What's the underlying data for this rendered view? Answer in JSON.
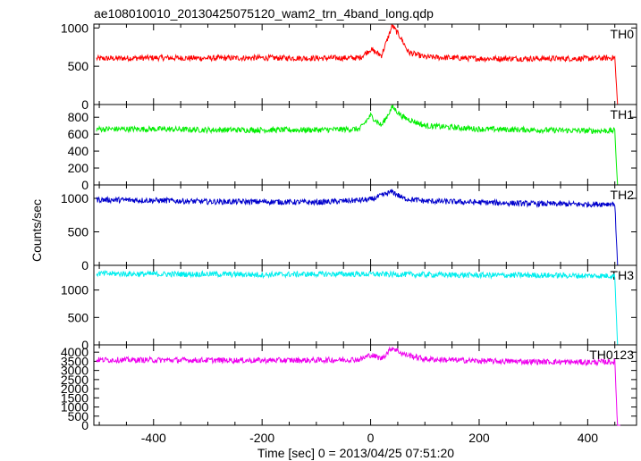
{
  "chart_data": {
    "type": "line",
    "title": "ae108010010_20130425075120_wam2_trn_4band_long.qdp",
    "xlabel": "Time [sec] 0 = 2013/04/25 07:51:20",
    "ylabel": "Counts/sec",
    "xlim": [
      -510,
      490
    ],
    "x_ticks": [
      -400,
      -200,
      0,
      200,
      400
    ],
    "grid": false,
    "panels": [
      {
        "name": "TH0",
        "color": "#ff0000",
        "ylim": [
          0,
          1050
        ],
        "y_ticks": [
          0,
          500,
          1000
        ],
        "series": [
          {
            "x": -505,
            "y": 600
          },
          {
            "x": -400,
            "y": 610
          },
          {
            "x": -300,
            "y": 605
          },
          {
            "x": -200,
            "y": 610
          },
          {
            "x": -100,
            "y": 605
          },
          {
            "x": -20,
            "y": 610
          },
          {
            "x": 0,
            "y": 720
          },
          {
            "x": 20,
            "y": 640
          },
          {
            "x": 40,
            "y": 1030
          },
          {
            "x": 55,
            "y": 880
          },
          {
            "x": 70,
            "y": 680
          },
          {
            "x": 100,
            "y": 620
          },
          {
            "x": 200,
            "y": 600
          },
          {
            "x": 300,
            "y": 600
          },
          {
            "x": 400,
            "y": 600
          },
          {
            "x": 450,
            "y": 610
          },
          {
            "x": 455,
            "y": 0
          },
          {
            "x": 460,
            "y": 0
          }
        ]
      },
      {
        "name": "TH1",
        "color": "#00ee00",
        "ylim": [
          0,
          950
        ],
        "y_ticks": [
          0,
          200,
          400,
          600,
          800
        ],
        "series": [
          {
            "x": -505,
            "y": 660
          },
          {
            "x": -400,
            "y": 660
          },
          {
            "x": -300,
            "y": 650
          },
          {
            "x": -200,
            "y": 650
          },
          {
            "x": -100,
            "y": 650
          },
          {
            "x": -20,
            "y": 660
          },
          {
            "x": 0,
            "y": 820
          },
          {
            "x": 20,
            "y": 700
          },
          {
            "x": 40,
            "y": 920
          },
          {
            "x": 60,
            "y": 800
          },
          {
            "x": 100,
            "y": 700
          },
          {
            "x": 200,
            "y": 660
          },
          {
            "x": 300,
            "y": 650
          },
          {
            "x": 400,
            "y": 640
          },
          {
            "x": 450,
            "y": 640
          },
          {
            "x": 455,
            "y": 0
          },
          {
            "x": 460,
            "y": 0
          }
        ]
      },
      {
        "name": "TH2",
        "color": "#0000cc",
        "ylim": [
          0,
          1200
        ],
        "y_ticks": [
          0,
          500,
          1000
        ],
        "series": [
          {
            "x": -505,
            "y": 980
          },
          {
            "x": -400,
            "y": 970
          },
          {
            "x": -300,
            "y": 950
          },
          {
            "x": -200,
            "y": 950
          },
          {
            "x": -100,
            "y": 940
          },
          {
            "x": 0,
            "y": 980
          },
          {
            "x": 40,
            "y": 1100
          },
          {
            "x": 60,
            "y": 1000
          },
          {
            "x": 100,
            "y": 960
          },
          {
            "x": 200,
            "y": 940
          },
          {
            "x": 300,
            "y": 920
          },
          {
            "x": 400,
            "y": 910
          },
          {
            "x": 450,
            "y": 920
          },
          {
            "x": 455,
            "y": 0
          },
          {
            "x": 460,
            "y": 0
          }
        ]
      },
      {
        "name": "TH3",
        "color": "#00eeee",
        "ylim": [
          0,
          1450
        ],
        "y_ticks": [
          0,
          500,
          1000
        ],
        "series": [
          {
            "x": -505,
            "y": 1300
          },
          {
            "x": -400,
            "y": 1290
          },
          {
            "x": -300,
            "y": 1290
          },
          {
            "x": -200,
            "y": 1280
          },
          {
            "x": -100,
            "y": 1290
          },
          {
            "x": 0,
            "y": 1290
          },
          {
            "x": 100,
            "y": 1280
          },
          {
            "x": 200,
            "y": 1270
          },
          {
            "x": 300,
            "y": 1270
          },
          {
            "x": 400,
            "y": 1260
          },
          {
            "x": 450,
            "y": 1260
          },
          {
            "x": 455,
            "y": 0
          },
          {
            "x": 460,
            "y": 0
          }
        ]
      },
      {
        "name": "TH0123",
        "color": "#ee00ee",
        "ylim": [
          0,
          4400
        ],
        "y_ticks": [
          0,
          500,
          1000,
          1500,
          2000,
          2500,
          3000,
          3500,
          4000
        ],
        "series": [
          {
            "x": -505,
            "y": 3580
          },
          {
            "x": -400,
            "y": 3570
          },
          {
            "x": -300,
            "y": 3560
          },
          {
            "x": -200,
            "y": 3550
          },
          {
            "x": -100,
            "y": 3560
          },
          {
            "x": -20,
            "y": 3600
          },
          {
            "x": 0,
            "y": 3850
          },
          {
            "x": 20,
            "y": 3650
          },
          {
            "x": 40,
            "y": 4250
          },
          {
            "x": 60,
            "y": 3900
          },
          {
            "x": 100,
            "y": 3620
          },
          {
            "x": 200,
            "y": 3520
          },
          {
            "x": 300,
            "y": 3480
          },
          {
            "x": 400,
            "y": 3450
          },
          {
            "x": 450,
            "y": 3470
          },
          {
            "x": 455,
            "y": 0
          },
          {
            "x": 460,
            "y": 0
          }
        ]
      }
    ]
  }
}
